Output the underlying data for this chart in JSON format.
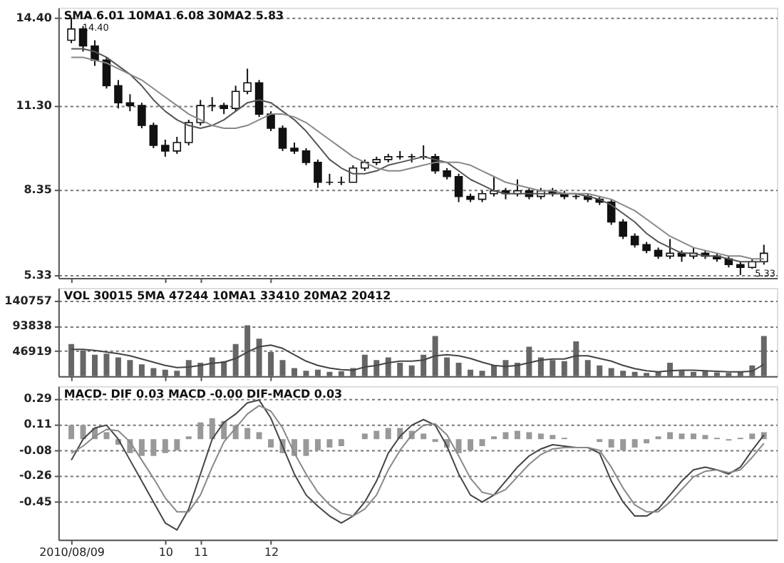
{
  "chart_data": [
    {
      "type": "candlestick",
      "annotations": [
        "SMA 6.01  10MA1 6.08  30MA2 5.83",
        "14.40",
        "5.33"
      ],
      "categories": [
        "2010/08/09",
        null,
        null,
        null,
        null,
        null,
        null,
        null,
        "10",
        null,
        null,
        "11",
        null,
        null,
        null,
        null,
        null,
        "12",
        null,
        null,
        null,
        null,
        null,
        null,
        null,
        null,
        null,
        null,
        null,
        null,
        null,
        null,
        null,
        null,
        null,
        null,
        null,
        null,
        null,
        null,
        null,
        null,
        null,
        null,
        null,
        null,
        null,
        null,
        null,
        null,
        null,
        null,
        null,
        null,
        null,
        null,
        null,
        null,
        null,
        null
      ],
      "ohlc": [
        [
          13.6,
          14.4,
          13.5,
          14.0
        ],
        [
          14.0,
          14.1,
          13.2,
          13.4
        ],
        [
          13.4,
          13.6,
          12.7,
          12.9
        ],
        [
          12.9,
          13.0,
          11.9,
          12.0
        ],
        [
          12.0,
          12.2,
          11.2,
          11.4
        ],
        [
          11.4,
          11.7,
          11.1,
          11.3
        ],
        [
          11.3,
          11.4,
          10.5,
          10.6
        ],
        [
          10.6,
          10.7,
          9.8,
          9.9
        ],
        [
          9.9,
          10.1,
          9.5,
          9.7
        ],
        [
          9.7,
          10.2,
          9.6,
          10.0
        ],
        [
          10.0,
          10.8,
          9.9,
          10.7
        ],
        [
          10.7,
          11.5,
          10.6,
          11.3
        ],
        [
          11.3,
          11.6,
          11.1,
          11.3
        ],
        [
          11.3,
          11.4,
          11.0,
          11.2
        ],
        [
          11.2,
          12.0,
          11.1,
          11.8
        ],
        [
          11.8,
          12.6,
          11.7,
          12.1
        ],
        [
          12.1,
          12.2,
          10.9,
          11.0
        ],
        [
          11.0,
          11.1,
          10.4,
          10.5
        ],
        [
          10.5,
          10.6,
          9.7,
          9.8
        ],
        [
          9.8,
          10.0,
          9.6,
          9.7
        ],
        [
          9.7,
          9.8,
          9.2,
          9.3
        ],
        [
          9.3,
          9.4,
          8.4,
          8.6
        ],
        [
          8.6,
          8.9,
          8.5,
          8.6
        ],
        [
          8.6,
          8.8,
          8.5,
          8.6
        ],
        [
          8.6,
          9.2,
          8.6,
          9.1
        ],
        [
          9.1,
          9.4,
          9.0,
          9.3
        ],
        [
          9.3,
          9.5,
          9.2,
          9.4
        ],
        [
          9.4,
          9.6,
          9.3,
          9.5
        ],
        [
          9.5,
          9.7,
          9.4,
          9.5
        ],
        [
          9.5,
          9.6,
          9.3,
          9.5
        ],
        [
          9.5,
          9.9,
          9.4,
          9.5
        ],
        [
          9.5,
          9.6,
          8.9,
          9.0
        ],
        [
          9.0,
          9.1,
          8.7,
          8.8
        ],
        [
          8.8,
          8.9,
          7.9,
          8.1
        ],
        [
          8.1,
          8.2,
          7.9,
          8.0
        ],
        [
          8.0,
          8.3,
          7.9,
          8.2
        ],
        [
          8.2,
          8.8,
          8.1,
          8.3
        ],
        [
          8.3,
          8.4,
          8.0,
          8.2
        ],
        [
          8.2,
          8.7,
          8.1,
          8.3
        ],
        [
          8.3,
          8.4,
          8.0,
          8.1
        ],
        [
          8.1,
          8.4,
          8.0,
          8.3
        ],
        [
          8.3,
          8.4,
          8.1,
          8.2
        ],
        [
          8.2,
          8.3,
          8.0,
          8.1
        ],
        [
          8.1,
          8.2,
          8.0,
          8.1
        ],
        [
          8.1,
          8.2,
          7.9,
          8.0
        ],
        [
          8.0,
          8.1,
          7.8,
          7.9
        ],
        [
          7.9,
          8.0,
          7.1,
          7.2
        ],
        [
          7.2,
          7.3,
          6.6,
          6.7
        ],
        [
          6.7,
          6.8,
          6.3,
          6.4
        ],
        [
          6.4,
          6.5,
          6.1,
          6.2
        ],
        [
          6.2,
          6.3,
          5.9,
          6.0
        ],
        [
          6.0,
          6.6,
          5.9,
          6.1
        ],
        [
          6.1,
          6.2,
          5.8,
          6.0
        ],
        [
          6.0,
          6.3,
          5.9,
          6.1
        ],
        [
          6.1,
          6.2,
          5.9,
          6.0
        ],
        [
          6.0,
          6.1,
          5.8,
          5.9
        ],
        [
          5.9,
          6.0,
          5.6,
          5.7
        ],
        [
          5.7,
          5.8,
          5.33,
          5.6
        ],
        [
          5.6,
          5.9,
          5.55,
          5.8
        ],
        [
          5.8,
          6.4,
          5.7,
          6.1
        ]
      ],
      "series": [
        {
          "type": "line",
          "color": "#555555",
          "values": [
            13.3,
            13.3,
            13.2,
            13.0,
            12.7,
            12.4,
            12.0,
            11.5,
            11.1,
            10.8,
            10.6,
            10.5,
            10.6,
            10.8,
            11.1,
            11.4,
            11.5,
            11.4,
            11.1,
            10.8,
            10.4,
            9.9,
            9.4,
            9.1,
            8.9,
            8.9,
            9.0,
            9.2,
            9.3,
            9.4,
            9.5,
            9.4,
            9.3,
            9.0,
            8.7,
            8.5,
            8.3,
            8.2,
            8.2,
            8.2,
            8.2,
            8.2,
            8.2,
            8.2,
            8.1,
            8.0,
            7.8,
            7.5,
            7.2,
            6.8,
            6.5,
            6.3,
            6.1,
            6.1,
            6.0,
            6.0,
            5.9,
            5.8,
            5.8,
            5.8
          ]
        },
        {
          "type": "line",
          "color": "#888888",
          "values": [
            13.0,
            13.0,
            12.9,
            12.8,
            12.6,
            12.4,
            12.2,
            11.9,
            11.6,
            11.3,
            11.0,
            10.8,
            10.6,
            10.5,
            10.5,
            10.6,
            10.8,
            11.0,
            11.0,
            10.9,
            10.7,
            10.4,
            10.1,
            9.8,
            9.5,
            9.3,
            9.1,
            9.0,
            9.0,
            9.1,
            9.2,
            9.3,
            9.3,
            9.3,
            9.2,
            9.0,
            8.8,
            8.6,
            8.5,
            8.4,
            8.3,
            8.3,
            8.2,
            8.2,
            8.2,
            8.1,
            8.0,
            7.8,
            7.6,
            7.3,
            7.0,
            6.7,
            6.5,
            6.3,
            6.2,
            6.1,
            6.0,
            6.0,
            5.9,
            5.9
          ]
        }
      ],
      "ylim": [
        5.23,
        14.75
      ],
      "yticks": [
        {
          "value": 14.4,
          "label": "14.40"
        },
        {
          "value": 11.3,
          "label": "11.30"
        },
        8.35,
        5.33
      ],
      "grid": "y",
      "tick_labels": "y"
    },
    {
      "type": "bar",
      "annotations": [
        "VOL 30015  5MA 47244  10MA1 33410  20MA2 20412"
      ],
      "categories": [
        "2010/08/09",
        null,
        null,
        null,
        null,
        null,
        null,
        null,
        "10",
        null,
        null,
        "11",
        null,
        null,
        null,
        null,
        null,
        "12",
        null,
        null,
        null,
        null,
        null,
        null,
        null,
        null,
        null,
        null,
        null,
        null,
        null,
        null,
        null,
        null,
        null,
        null,
        null,
        null,
        null,
        null,
        null,
        null,
        null,
        null,
        null,
        null,
        null,
        null,
        null,
        null,
        null,
        null,
        null,
        null,
        null,
        null,
        null,
        null,
        null,
        null
      ],
      "series": [
        {
          "type": "bar",
          "color": "#666666",
          "values": [
            60000,
            48000,
            40000,
            42000,
            35000,
            30000,
            22000,
            15000,
            12000,
            10000,
            30000,
            25000,
            35000,
            28000,
            60000,
            95000,
            70000,
            45000,
            30000,
            15000,
            10000,
            12000,
            8000,
            9000,
            15000,
            40000,
            30000,
            35000,
            25000,
            20000,
            40000,
            75000,
            35000,
            25000,
            12000,
            10000,
            20000,
            30000,
            25000,
            55000,
            35000,
            30000,
            28000,
            65000,
            30000,
            20000,
            15000,
            10000,
            8000,
            6000,
            8000,
            25000,
            10000,
            8000,
            9000,
            7000,
            6000,
            8000,
            20000,
            75000
          ]
        },
        {
          "type": "line",
          "color": "#444444",
          "values": [
            50000,
            50000,
            48000,
            45000,
            42000,
            38000,
            32000,
            26000,
            20000,
            16000,
            17000,
            20000,
            24000,
            26000,
            33000,
            45000,
            55000,
            58000,
            52000,
            40000,
            28000,
            20000,
            15000,
            12000,
            11000,
            17000,
            20000,
            25000,
            28000,
            28000,
            30000,
            38000,
            40000,
            38000,
            33000,
            26000,
            20000,
            18000,
            20000,
            25000,
            30000,
            32000,
            32000,
            38000,
            38000,
            33000,
            28000,
            20000,
            14000,
            10000,
            8000,
            10000,
            11000,
            11000,
            10000,
            9000,
            8000,
            8000,
            9000,
            22000
          ]
        }
      ],
      "ylim": [
        0,
        165000
      ],
      "yticks": [
        46919,
        93838,
        140757
      ],
      "grid": "y",
      "tick_labels": "y"
    },
    {
      "type": "bar",
      "annotations": [
        "MACD- DIF 0.03  MACD -0.00  DIF-MACD 0.03"
      ],
      "categories": [
        "2010/08/09",
        null,
        null,
        null,
        null,
        null,
        null,
        null,
        "10",
        null,
        null,
        "11",
        null,
        null,
        null,
        null,
        null,
        "12",
        null,
        null,
        null,
        null,
        null,
        null,
        null,
        null,
        null,
        null,
        null,
        null,
        null,
        null,
        null,
        null,
        null,
        null,
        null,
        null,
        null,
        null,
        null,
        null,
        null,
        null,
        null,
        null,
        null,
        null,
        null,
        null,
        null,
        null,
        null,
        null,
        null,
        null,
        null,
        null,
        null,
        null
      ],
      "series": [
        {
          "type": "bar",
          "color": "#999999",
          "values": [
            0.1,
            0.1,
            0.08,
            0.05,
            -0.04,
            -0.1,
            -0.12,
            -0.12,
            -0.1,
            -0.08,
            0.02,
            0.12,
            0.15,
            0.13,
            0.1,
            0.08,
            0.05,
            -0.06,
            -0.1,
            -0.12,
            -0.12,
            -0.08,
            -0.06,
            -0.05,
            0.0,
            0.04,
            0.06,
            0.08,
            0.08,
            0.06,
            0.04,
            -0.02,
            -0.06,
            -0.1,
            -0.08,
            -0.05,
            0.02,
            0.05,
            0.06,
            0.05,
            0.04,
            0.03,
            0.01,
            0.0,
            0.0,
            -0.02,
            -0.06,
            -0.08,
            -0.06,
            -0.03,
            0.02,
            0.05,
            0.04,
            0.04,
            0.03,
            0.01,
            -0.01,
            0.01,
            0.04,
            0.05
          ]
        },
        {
          "type": "line",
          "color": "#444444",
          "values": [
            -0.15,
            0.0,
            0.08,
            0.1,
            0.0,
            -0.15,
            -0.3,
            -0.45,
            -0.6,
            -0.65,
            -0.5,
            -0.25,
            0.0,
            0.12,
            0.18,
            0.26,
            0.28,
            0.15,
            -0.05,
            -0.25,
            -0.4,
            -0.48,
            -0.55,
            -0.6,
            -0.55,
            -0.45,
            -0.3,
            -0.1,
            0.02,
            0.1,
            0.14,
            0.1,
            -0.05,
            -0.25,
            -0.4,
            -0.45,
            -0.4,
            -0.3,
            -0.2,
            -0.12,
            -0.07,
            -0.04,
            -0.05,
            -0.06,
            -0.06,
            -0.1,
            -0.3,
            -0.45,
            -0.55,
            -0.55,
            -0.5,
            -0.4,
            -0.3,
            -0.22,
            -0.2,
            -0.22,
            -0.25,
            -0.2,
            -0.08,
            0.03
          ]
        },
        {
          "type": "line",
          "color": "#888888",
          "values": [
            -0.1,
            -0.05,
            0.02,
            0.07,
            0.06,
            -0.02,
            -0.15,
            -0.28,
            -0.42,
            -0.52,
            -0.52,
            -0.4,
            -0.2,
            -0.02,
            0.08,
            0.18,
            0.24,
            0.2,
            0.08,
            -0.1,
            -0.25,
            -0.38,
            -0.47,
            -0.53,
            -0.55,
            -0.5,
            -0.4,
            -0.22,
            -0.08,
            0.03,
            0.1,
            0.11,
            0.03,
            -0.12,
            -0.28,
            -0.38,
            -0.4,
            -0.36,
            -0.27,
            -0.18,
            -0.11,
            -0.07,
            -0.06,
            -0.06,
            -0.06,
            -0.08,
            -0.2,
            -0.35,
            -0.47,
            -0.52,
            -0.52,
            -0.45,
            -0.36,
            -0.27,
            -0.23,
            -0.22,
            -0.24,
            -0.22,
            -0.13,
            -0.03
          ]
        }
      ],
      "ylim": [
        -0.72,
        0.38
      ],
      "yticks": [
        0.29,
        0.11,
        -0.08,
        -0.26,
        -0.45
      ],
      "grid": "y"
    }
  ]
}
